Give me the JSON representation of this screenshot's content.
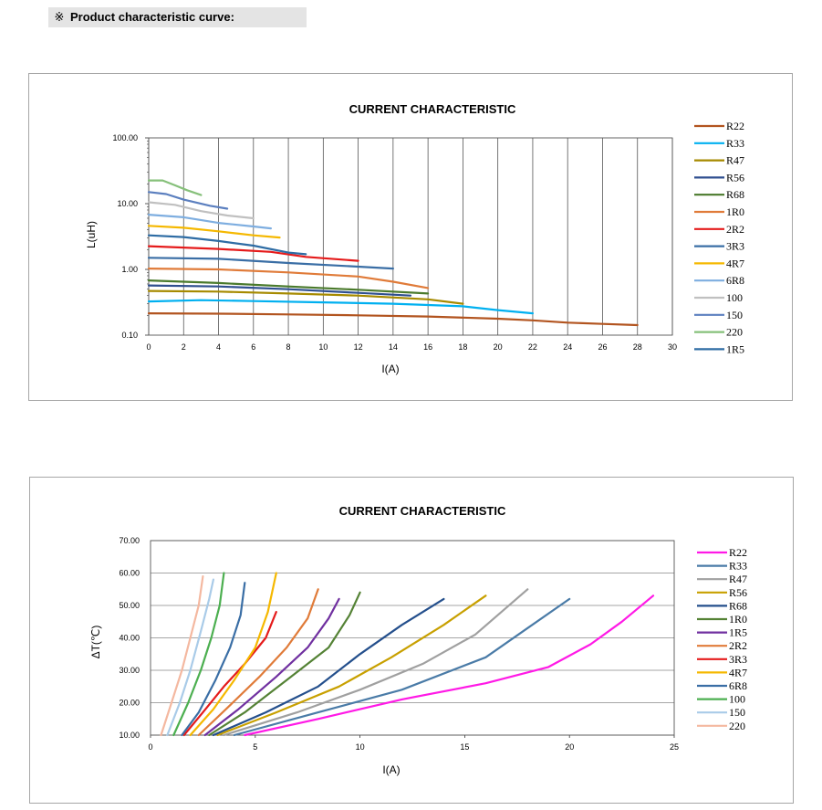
{
  "header": {
    "mark": "※",
    "text": "Product characteristic curve:"
  },
  "chart_data": [
    {
      "type": "line",
      "title": "CURRENT CHARACTERISTIC",
      "xlabel": "I(A)",
      "ylabel": "L(uH)",
      "xlim": [
        0,
        30
      ],
      "ylim": [
        0.1,
        100
      ],
      "yscale": "log",
      "xticks": [
        "0",
        "2",
        "4",
        "6",
        "8",
        "10",
        "12",
        "14",
        "16",
        "18",
        "20",
        "22",
        "24",
        "26",
        "28",
        "30"
      ],
      "yticks": [
        "0.10",
        "1.00",
        "10.00",
        "100.00"
      ],
      "grid": "vertical",
      "legend": "right",
      "series": [
        {
          "name": "R22",
          "color": "#b2541f",
          "points": [
            [
              0,
              0.215
            ],
            [
              4,
              0.212
            ],
            [
              8,
              0.207
            ],
            [
              12,
              0.2
            ],
            [
              16,
              0.192
            ],
            [
              20,
              0.178
            ],
            [
              22,
              0.168
            ],
            [
              24,
              0.155
            ],
            [
              26,
              0.148
            ],
            [
              28,
              0.142
            ]
          ]
        },
        {
          "name": "R33",
          "color": "#00b0f0",
          "points": [
            [
              0,
              0.325
            ],
            [
              3,
              0.34
            ],
            [
              6,
              0.33
            ],
            [
              10,
              0.315
            ],
            [
              14,
              0.3
            ],
            [
              18,
              0.275
            ],
            [
              20,
              0.24
            ],
            [
              22,
              0.215
            ]
          ]
        },
        {
          "name": "R47",
          "color": "#a68a00",
          "points": [
            [
              0,
              0.47
            ],
            [
              4,
              0.46
            ],
            [
              8,
              0.43
            ],
            [
              12,
              0.4
            ],
            [
              16,
              0.35
            ],
            [
              18,
              0.3
            ]
          ]
        },
        {
          "name": "R56",
          "color": "#2f4f8f",
          "points": [
            [
              0,
              0.57
            ],
            [
              4,
              0.55
            ],
            [
              8,
              0.5
            ],
            [
              12,
              0.44
            ],
            [
              15,
              0.4
            ]
          ]
        },
        {
          "name": "R68",
          "color": "#4a7a2c",
          "points": [
            [
              0,
              0.68
            ],
            [
              4,
              0.62
            ],
            [
              8,
              0.55
            ],
            [
              12,
              0.49
            ],
            [
              16,
              0.43
            ]
          ]
        },
        {
          "name": "1R0",
          "color": "#e07b39",
          "points": [
            [
              0,
              1.03
            ],
            [
              4,
              1.0
            ],
            [
              8,
              0.9
            ],
            [
              12,
              0.78
            ],
            [
              14,
              0.65
            ],
            [
              16,
              0.52
            ]
          ]
        },
        {
          "name": "2R2",
          "color": "#e51b1b",
          "points": [
            [
              0,
              2.25
            ],
            [
              4,
              2.05
            ],
            [
              7,
              1.85
            ],
            [
              9,
              1.55
            ],
            [
              12,
              1.35
            ]
          ]
        },
        {
          "name": "3R3",
          "color": "#3a6ea5",
          "points": [
            [
              0,
              1.5
            ],
            [
              4,
              1.45
            ],
            [
              8,
              1.25
            ],
            [
              12,
              1.1
            ],
            [
              14,
              1.03
            ]
          ]
        },
        {
          "name": "4R7",
          "color": "#f5b800",
          "points": [
            [
              0,
              4.6
            ],
            [
              2,
              4.3
            ],
            [
              4,
              3.8
            ],
            [
              6,
              3.3
            ],
            [
              7.5,
              3.05
            ]
          ]
        },
        {
          "name": "6R8",
          "color": "#7eaee0",
          "points": [
            [
              0,
              6.8
            ],
            [
              2,
              6.2
            ],
            [
              4,
              5.1
            ],
            [
              6,
              4.5
            ],
            [
              7,
              4.2
            ]
          ]
        },
        {
          "name": "100",
          "color": "#c0c0c0",
          "points": [
            [
              0,
              10.5
            ],
            [
              1.5,
              9.6
            ],
            [
              3,
              7.7
            ],
            [
              4.5,
              6.6
            ],
            [
              6,
              6.0
            ]
          ]
        },
        {
          "name": "150",
          "color": "#5b7fbf",
          "points": [
            [
              0,
              15
            ],
            [
              1,
              14
            ],
            [
              2,
              11.5
            ],
            [
              3.5,
              9.3
            ],
            [
              4.5,
              8.4
            ]
          ]
        },
        {
          "name": "220",
          "color": "#86c07a",
          "points": [
            [
              0,
              22.5
            ],
            [
              0.8,
              22.5
            ],
            [
              1.5,
              19
            ],
            [
              2.2,
              16
            ],
            [
              3,
              13.5
            ]
          ]
        },
        {
          "name": "1R5",
          "color": "#2e6ca4",
          "points": [
            [
              0,
              3.3
            ],
            [
              2,
              3.1
            ],
            [
              4,
              2.7
            ],
            [
              6,
              2.3
            ],
            [
              8,
              1.8
            ],
            [
              9,
              1.7
            ]
          ]
        }
      ]
    },
    {
      "type": "line",
      "title": "CURRENT CHARACTERISTIC",
      "xlabel": "I(A)",
      "ylabel": "ΔT(℃)",
      "xlim": [
        0,
        25
      ],
      "ylim": [
        10,
        70
      ],
      "xticks": [
        "0",
        "5",
        "10",
        "15",
        "20",
        "25"
      ],
      "yticks": [
        "10.00",
        "20.00",
        "30.00",
        "40.00",
        "50.00",
        "60.00",
        "70.00"
      ],
      "grid": "horizontal",
      "legend": "right",
      "series": [
        {
          "name": "R22",
          "color": "#ff19e6",
          "points": [
            [
              4.5,
              10
            ],
            [
              8,
              15
            ],
            [
              12,
              21
            ],
            [
              16,
              26
            ],
            [
              19,
              31
            ],
            [
              21,
              38
            ],
            [
              22.5,
              45
            ],
            [
              24,
              53
            ]
          ]
        },
        {
          "name": "R33",
          "color": "#4a7ba7",
          "points": [
            [
              4,
              10
            ],
            [
              8,
              17
            ],
            [
              12,
              24
            ],
            [
              16,
              34
            ],
            [
              18,
              43
            ],
            [
              20,
              52
            ]
          ]
        },
        {
          "name": "R47",
          "color": "#a0a0a0",
          "points": [
            [
              3.5,
              10
            ],
            [
              7,
              17
            ],
            [
              10,
              24
            ],
            [
              13,
              32
            ],
            [
              15.5,
              41
            ],
            [
              18,
              55
            ]
          ]
        },
        {
          "name": "R56",
          "color": "#c8a000",
          "points": [
            [
              3.2,
              10
            ],
            [
              6,
              17
            ],
            [
              9,
              25
            ],
            [
              11.5,
              34
            ],
            [
              14,
              44
            ],
            [
              16,
              53
            ]
          ]
        },
        {
          "name": "R68",
          "color": "#244f8c",
          "points": [
            [
              3,
              10
            ],
            [
              5.5,
              17
            ],
            [
              8,
              25
            ],
            [
              10,
              35
            ],
            [
              12,
              44
            ],
            [
              14,
              52
            ]
          ]
        },
        {
          "name": "1R0",
          "color": "#548235",
          "points": [
            [
              2.8,
              10
            ],
            [
              4.5,
              17
            ],
            [
              6.5,
              27
            ],
            [
              8.5,
              37
            ],
            [
              9.5,
              47
            ],
            [
              10,
              54
            ]
          ]
        },
        {
          "name": "1R5",
          "color": "#7030a0",
          "points": [
            [
              2.6,
              10
            ],
            [
              4.2,
              18
            ],
            [
              6,
              28
            ],
            [
              7.5,
              37
            ],
            [
              8.5,
              46
            ],
            [
              9,
              52
            ]
          ]
        },
        {
          "name": "2R2",
          "color": "#e07b39",
          "points": [
            [
              2.3,
              10
            ],
            [
              3.6,
              18
            ],
            [
              5.2,
              28
            ],
            [
              6.5,
              37
            ],
            [
              7.5,
              46
            ],
            [
              8,
              55
            ]
          ]
        },
        {
          "name": "3R3",
          "color": "#e51b1b",
          "points": [
            [
              1.6,
              10
            ],
            [
              2.5,
              17
            ],
            [
              3.5,
              25
            ],
            [
              4.5,
              32
            ],
            [
              5.5,
              40
            ],
            [
              6,
              48
            ]
          ]
        },
        {
          "name": "4R7",
          "color": "#f5b800",
          "points": [
            [
              1.9,
              10
            ],
            [
              3,
              18
            ],
            [
              4,
              27
            ],
            [
              5,
              37
            ],
            [
              5.6,
              48
            ],
            [
              6,
              60
            ]
          ]
        },
        {
          "name": "6R8",
          "color": "#3a6ea5",
          "points": [
            [
              1.5,
              10
            ],
            [
              2.3,
              17
            ],
            [
              3.1,
              27
            ],
            [
              3.8,
              37
            ],
            [
              4.3,
              47
            ],
            [
              4.5,
              57
            ]
          ]
        },
        {
          "name": "100",
          "color": "#4caf50",
          "points": [
            [
              1.1,
              10
            ],
            [
              1.8,
              20
            ],
            [
              2.4,
              30
            ],
            [
              2.9,
              40
            ],
            [
              3.3,
              50
            ],
            [
              3.5,
              60
            ]
          ]
        },
        {
          "name": "150",
          "color": "#a9cbe8",
          "points": [
            [
              0.8,
              10
            ],
            [
              1.4,
              20
            ],
            [
              1.9,
              30
            ],
            [
              2.4,
              42
            ],
            [
              2.8,
              52
            ],
            [
              3,
              58
            ]
          ]
        },
        {
          "name": "220",
          "color": "#f4b8a0",
          "points": [
            [
              0.5,
              10
            ],
            [
              1,
              20
            ],
            [
              1.5,
              30
            ],
            [
              1.9,
              40
            ],
            [
              2.3,
              50
            ],
            [
              2.5,
              59
            ]
          ]
        }
      ]
    }
  ]
}
